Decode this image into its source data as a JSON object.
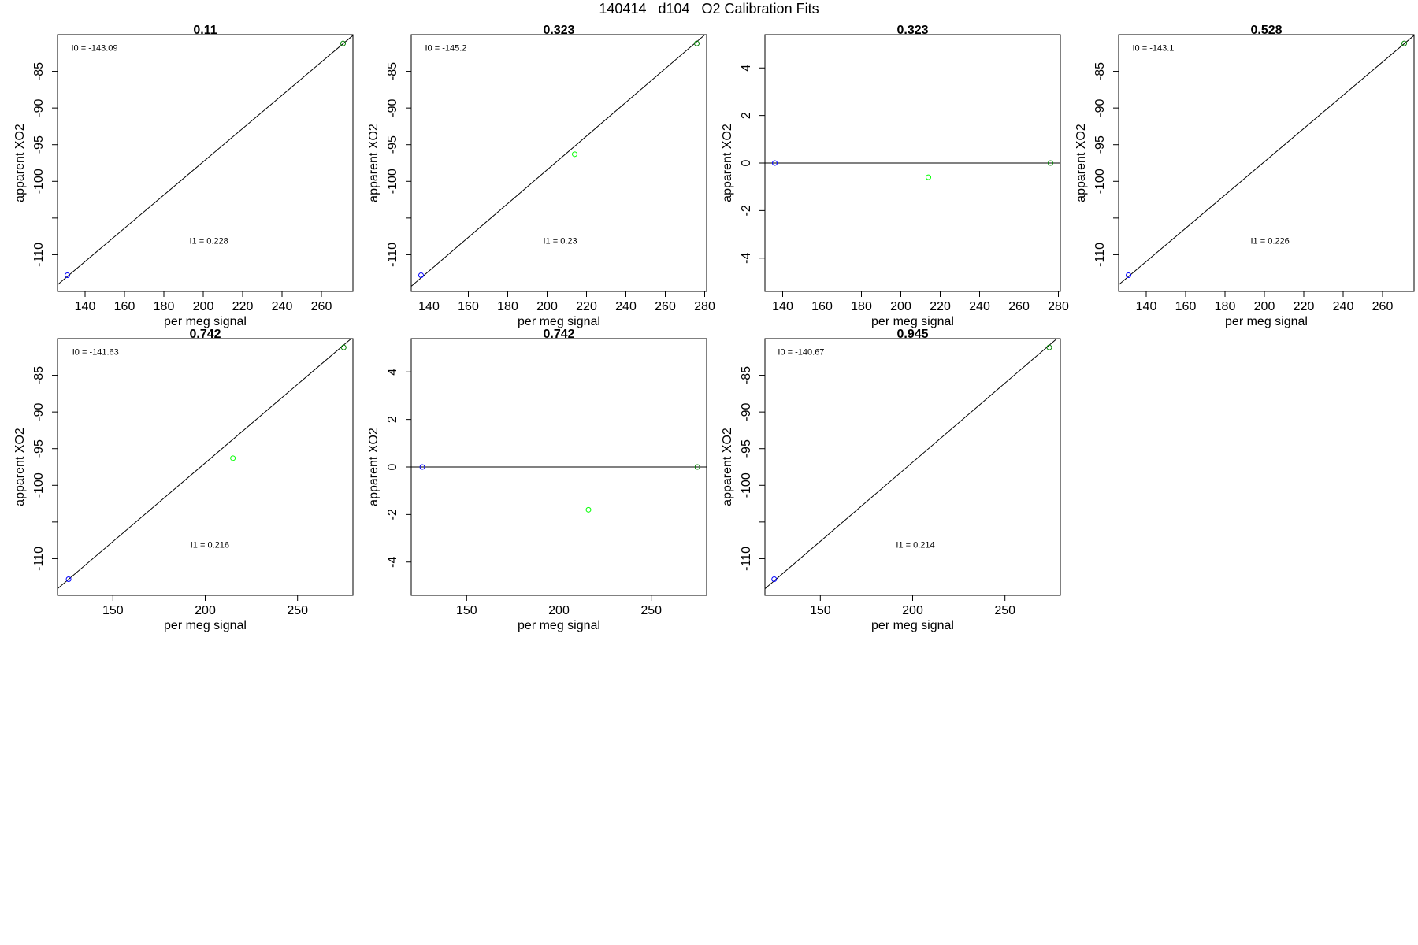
{
  "page_title": "140414   d104   O2 Calibration Fits",
  "chart_data": [
    {
      "type": "scatter",
      "title": "0.11",
      "xlabel": "per meg signal",
      "ylabel": "apparent XO2",
      "xlim": [
        126,
        276
      ],
      "ylim": [
        -115,
        -80
      ],
      "xticks": [
        140,
        160,
        180,
        200,
        220,
        240,
        260
      ],
      "yticks": [
        -110,
        -100,
        -95,
        -90,
        -85
      ],
      "extra_yticks": [
        -105
      ],
      "points": [
        {
          "x": 131,
          "y": -112.8,
          "color": "#0000ff"
        },
        {
          "x": 271,
          "y": -81.2,
          "color": "#008000"
        }
      ],
      "fit_line": [
        [
          126,
          -114.1
        ],
        [
          276,
          -80.1
        ]
      ],
      "annotations": [
        {
          "text": "I0 =  -143.09",
          "x": 133,
          "y": -82.2
        },
        {
          "text": "I1 =  0.228",
          "x": 193,
          "y": -108.5
        }
      ]
    },
    {
      "type": "scatter",
      "title": "0.323",
      "xlabel": "per meg signal",
      "ylabel": "apparent XO2",
      "xlim": [
        131,
        281
      ],
      "ylim": [
        -115,
        -80
      ],
      "xticks": [
        140,
        160,
        180,
        200,
        220,
        240,
        260,
        280
      ],
      "yticks": [
        -110,
        -100,
        -95,
        -90,
        -85
      ],
      "extra_yticks": [
        -105
      ],
      "points": [
        {
          "x": 136,
          "y": -112.8,
          "color": "#0000ff"
        },
        {
          "x": 214,
          "y": -96.3,
          "color": "#00ff00"
        },
        {
          "x": 276,
          "y": -81.2,
          "color": "#008000"
        }
      ],
      "fit_line": [
        [
          131,
          -114.3
        ],
        [
          281,
          -79.8
        ]
      ],
      "annotations": [
        {
          "text": "I0 =  -145.2",
          "x": 138,
          "y": -82.2
        },
        {
          "text": "I1 =  0.23",
          "x": 198,
          "y": -108.5
        }
      ]
    },
    {
      "type": "scatter",
      "title": "0.323",
      "xlabel": "per meg signal",
      "ylabel": "apparent XO2",
      "xlim": [
        131,
        281
      ],
      "ylim": [
        -5.4,
        5.4
      ],
      "xticks": [
        140,
        160,
        180,
        200,
        220,
        240,
        260,
        280
      ],
      "yticks": [
        -4,
        -2,
        0,
        2,
        4
      ],
      "points": [
        {
          "x": 136,
          "y": 0,
          "color": "#0000ff"
        },
        {
          "x": 214,
          "y": -0.6,
          "color": "#00ff00"
        },
        {
          "x": 276,
          "y": 0,
          "color": "#008000"
        }
      ],
      "fit_line": [
        [
          131,
          0
        ],
        [
          281,
          0
        ]
      ],
      "annotations": []
    },
    {
      "type": "scatter",
      "title": "0.528",
      "xlabel": "per meg signal",
      "ylabel": "apparent XO2",
      "xlim": [
        126,
        276
      ],
      "ylim": [
        -115,
        -80
      ],
      "xticks": [
        140,
        160,
        180,
        200,
        220,
        240,
        260
      ],
      "yticks": [
        -110,
        -100,
        -95,
        -90,
        -85
      ],
      "extra_yticks": [
        -105
      ],
      "points": [
        {
          "x": 131,
          "y": -112.8,
          "color": "#0000ff"
        },
        {
          "x": 271,
          "y": -81.2,
          "color": "#008000"
        }
      ],
      "fit_line": [
        [
          126,
          -114.1
        ],
        [
          276,
          -80.1
        ]
      ],
      "annotations": [
        {
          "text": "I0 =  -143.1",
          "x": 133,
          "y": -82.2
        },
        {
          "text": "I1 =  0.226",
          "x": 193,
          "y": -108.5
        }
      ]
    },
    {
      "type": "scatter",
      "title": "0.742",
      "xlabel": "per meg signal",
      "ylabel": "apparent XO2",
      "xlim": [
        120,
        280
      ],
      "ylim": [
        -115,
        -80
      ],
      "xticks": [
        150,
        200,
        250
      ],
      "yticks": [
        -110,
        -100,
        -95,
        -90,
        -85
      ],
      "extra_yticks": [
        -105
      ],
      "points": [
        {
          "x": 126,
          "y": -112.8,
          "color": "#0000ff"
        },
        {
          "x": 215,
          "y": -96.3,
          "color": "#00ff00"
        },
        {
          "x": 275,
          "y": -81.2,
          "color": "#008000"
        }
      ],
      "fit_line": [
        [
          120,
          -114.1
        ],
        [
          280,
          -79.8
        ]
      ],
      "annotations": [
        {
          "text": "I0 =  -141.63",
          "x": 128,
          "y": -82.2
        },
        {
          "text": "I1 =  0.216",
          "x": 192,
          "y": -108.5
        }
      ]
    },
    {
      "type": "scatter",
      "title": "0.742",
      "xlabel": "per meg signal",
      "ylabel": "apparent XO2",
      "xlim": [
        120,
        280
      ],
      "ylim": [
        -5.4,
        5.4
      ],
      "xticks": [
        150,
        200,
        250
      ],
      "yticks": [
        -4,
        -2,
        0,
        2,
        4
      ],
      "points": [
        {
          "x": 126,
          "y": 0,
          "color": "#0000ff"
        },
        {
          "x": 216,
          "y": -1.8,
          "color": "#00ff00"
        },
        {
          "x": 275,
          "y": 0,
          "color": "#008000"
        }
      ],
      "fit_line": [
        [
          120,
          0
        ],
        [
          280,
          0
        ]
      ],
      "annotations": []
    },
    {
      "type": "scatter",
      "title": "0.945",
      "xlabel": "per meg signal",
      "ylabel": "apparent XO2",
      "xlim": [
        120,
        280
      ],
      "ylim": [
        -115,
        -80
      ],
      "xticks": [
        150,
        200,
        250
      ],
      "yticks": [
        -110,
        -100,
        -95,
        -90,
        -85
      ],
      "extra_yticks": [
        -105
      ],
      "points": [
        {
          "x": 125,
          "y": -112.8,
          "color": "#0000ff"
        },
        {
          "x": 274,
          "y": -81.2,
          "color": "#008000"
        }
      ],
      "fit_line": [
        [
          120,
          -114.1
        ],
        [
          280,
          -79.6
        ]
      ],
      "annotations": [
        {
          "text": "I0 =  -140.67",
          "x": 127,
          "y": -82.2
        },
        {
          "text": "I1 =  0.214",
          "x": 191,
          "y": -108.5
        }
      ]
    }
  ]
}
